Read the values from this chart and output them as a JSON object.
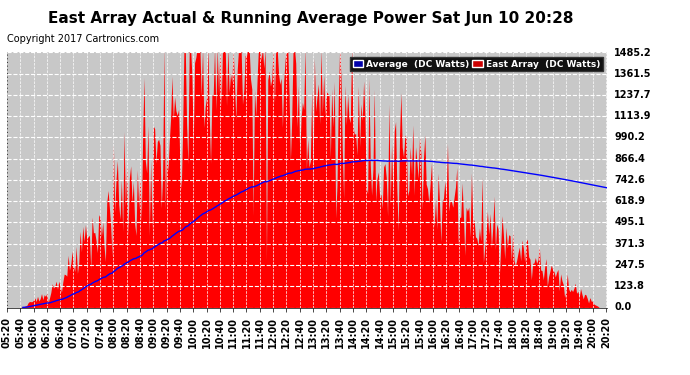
{
  "title": "East Array Actual & Running Average Power Sat Jun 10 20:28",
  "copyright": "Copyright 2017 Cartronics.com",
  "legend_avg": "Average  (DC Watts)",
  "legend_east": "East Array  (DC Watts)",
  "bar_color": "#ff0000",
  "avg_line_color": "#0000ff",
  "background_color": "#ffffff",
  "plot_bg_color": "#c8c8c8",
  "grid_color": "#ffffff",
  "ymax": 1485.2,
  "ymin": 0.0,
  "yticks": [
    0.0,
    123.8,
    247.5,
    371.3,
    495.1,
    618.9,
    742.6,
    866.4,
    990.2,
    1113.9,
    1237.7,
    1361.5,
    1485.2
  ],
  "title_fontsize": 11,
  "copyright_fontsize": 7,
  "tick_fontsize": 7,
  "legend_avg_bg": "#0000aa",
  "legend_east_bg": "#cc0000"
}
